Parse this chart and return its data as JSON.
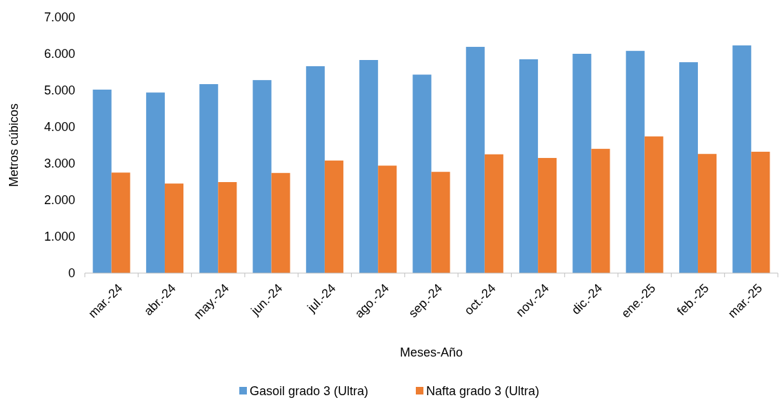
{
  "chart_data": {
    "type": "bar",
    "xlabel": "Meses-Año",
    "ylabel": "Metros cúbicos",
    "categories": [
      "mar.-24",
      "abr.-24",
      "may.-24",
      "jun.-24",
      "jul.-24",
      "ago.-24",
      "sep.-24",
      "oct.-24",
      "nov.-24",
      "dic.-24",
      "ene.-25",
      "feb.-25",
      "mar.-25"
    ],
    "series": [
      {
        "name": "Gasoil grado 3 (Ultra)",
        "color": "#5b9bd5",
        "values": [
          5020,
          4940,
          5170,
          5280,
          5660,
          5830,
          5430,
          6190,
          5850,
          6000,
          6080,
          5770,
          6230
        ]
      },
      {
        "name": "Nafta grado 3 (Ultra)",
        "color": "#ed7d31",
        "values": [
          2750,
          2450,
          2490,
          2740,
          3080,
          2940,
          2770,
          3250,
          3150,
          3400,
          3740,
          3260,
          3320
        ]
      }
    ],
    "ylim": [
      0,
      7000
    ],
    "yticks": [
      0,
      {
        "value": 1000,
        "label": "1.000"
      },
      {
        "value": 2000,
        "label": "2.000"
      },
      {
        "value": 3000,
        "label": "3.000"
      },
      {
        "value": 4000,
        "label": "4.000"
      },
      {
        "value": 5000,
        "label": "5.000"
      },
      {
        "value": 6000,
        "label": "6.000"
      },
      {
        "value": 7000,
        "label": "7.000"
      }
    ],
    "grid": false,
    "legend": "bottom"
  }
}
